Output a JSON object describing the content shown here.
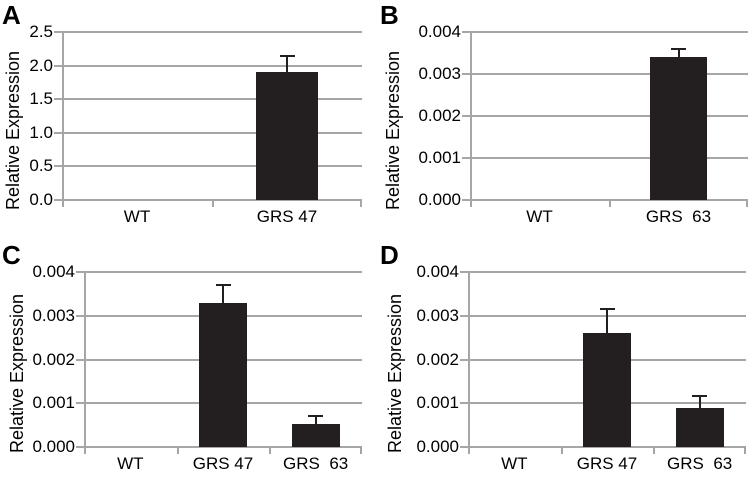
{
  "figure": {
    "background": "#ffffff",
    "bar_color": "#231f20",
    "grid_color": "#a6a6a6",
    "axis_color": "#a6a6a6",
    "error_color": "#231f20",
    "text_color": "#000000",
    "ylabel": "Relative Expression"
  },
  "chart_data": [
    {
      "type": "bar",
      "panel": "A",
      "title": "",
      "xlabel": "",
      "ylabel": "Relative Expression",
      "categories": [
        "WT",
        "GRS 47"
      ],
      "values": [
        0,
        1.9
      ],
      "errors": [
        0,
        0.25
      ],
      "ylim": [
        0,
        2.5
      ],
      "ytick_values": [
        0,
        0.5,
        1.0,
        1.5,
        2.0,
        2.5
      ],
      "ytick_labels": [
        "0.0",
        "0.5",
        "1.0",
        "1.5",
        "2.0",
        "2.5"
      ],
      "grid": true,
      "legend": "none"
    },
    {
      "type": "bar",
      "panel": "B",
      "title": "",
      "xlabel": "",
      "ylabel": "Relative Expression",
      "categories": [
        "WT",
        "GRS  63"
      ],
      "values": [
        0,
        0.0034
      ],
      "errors": [
        0,
        0.0002
      ],
      "ylim": [
        0,
        0.004
      ],
      "ytick_values": [
        0,
        0.001,
        0.002,
        0.003,
        0.004
      ],
      "ytick_labels": [
        "0.000",
        "0.001",
        "0.002",
        "0.003",
        "0.004"
      ],
      "grid": true,
      "legend": "none"
    },
    {
      "type": "bar",
      "panel": "C",
      "title": "",
      "xlabel": "",
      "ylabel": "Relative Expression",
      "categories": [
        "WT",
        "GRS 47",
        "GRS  63"
      ],
      "values": [
        0,
        0.0033,
        0.00053
      ],
      "errors": [
        0,
        0.0004,
        0.00018
      ],
      "ylim": [
        0,
        0.004
      ],
      "ytick_values": [
        0,
        0.001,
        0.002,
        0.003,
        0.004
      ],
      "ytick_labels": [
        "0.000",
        "0.001",
        "0.002",
        "0.003",
        "0.004"
      ],
      "grid": true,
      "legend": "none"
    },
    {
      "type": "bar",
      "panel": "D",
      "title": "",
      "xlabel": "",
      "ylabel": "Relative Expression",
      "categories": [
        "WT",
        "GRS 47",
        "GRS  63"
      ],
      "values": [
        0,
        0.0026,
        0.0009
      ],
      "errors": [
        0,
        0.00055,
        0.00027
      ],
      "ylim": [
        0,
        0.004
      ],
      "ytick_values": [
        0,
        0.001,
        0.002,
        0.003,
        0.004
      ],
      "ytick_labels": [
        "0.000",
        "0.001",
        "0.002",
        "0.003",
        "0.004"
      ],
      "grid": true,
      "legend": "none"
    }
  ]
}
